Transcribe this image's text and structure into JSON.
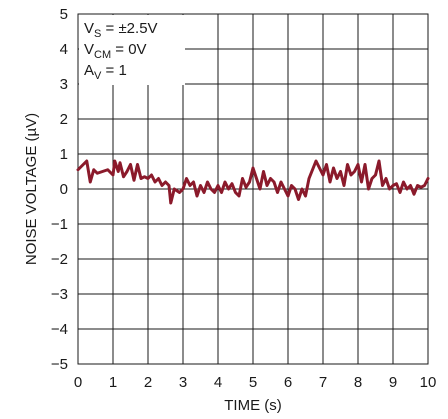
{
  "chart_data": {
    "type": "line",
    "title": "",
    "xlabel": "TIME (s)",
    "ylabel": "NOISE VOLTAGE (µV)",
    "xlim": [
      0,
      10
    ],
    "ylim": [
      -5,
      5
    ],
    "x_ticks": [
      0,
      1,
      2,
      3,
      4,
      5,
      6,
      7,
      8,
      9,
      10
    ],
    "y_ticks": [
      -5,
      -4,
      -3,
      -2,
      -1,
      0,
      1,
      2,
      3,
      4,
      5
    ],
    "x_tick_labels": [
      "0",
      "1",
      "2",
      "3",
      "4",
      "5",
      "6",
      "7",
      "8",
      "9",
      "10"
    ],
    "y_tick_labels": [
      "−5",
      "−4",
      "−3",
      "−2",
      "−1",
      "0",
      "1",
      "2",
      "3",
      "4",
      "5"
    ],
    "grid": true,
    "line_color": "#8b1a2b",
    "conditions": [
      {
        "main": "V",
        "sub": "S",
        "rest": " = ±2.5V"
      },
      {
        "main": "V",
        "sub": "CM",
        "rest": " = 0V"
      },
      {
        "main": "A",
        "sub": "V",
        "rest": " = 1"
      }
    ],
    "series": [
      {
        "x": [
          0,
          0.25,
          0.35,
          0.45,
          0.55,
          0.7,
          0.85,
          1.0,
          1.05,
          1.15,
          1.2,
          1.3,
          1.4,
          1.5,
          1.6,
          1.7,
          1.8,
          1.9,
          2.0,
          2.1,
          2.2,
          2.3,
          2.4,
          2.5,
          2.6,
          2.65,
          2.75,
          2.9,
          3.0,
          3.1,
          3.2,
          3.3,
          3.4,
          3.5,
          3.6,
          3.7,
          3.8,
          3.9,
          4.0,
          4.1,
          4.2,
          4.3,
          4.4,
          4.5,
          4.6,
          4.7,
          4.8,
          4.9,
          5.0,
          5.1,
          5.2,
          5.3,
          5.4,
          5.5,
          5.6,
          5.7,
          5.8,
          5.9,
          6.0,
          6.1,
          6.2,
          6.3,
          6.4,
          6.5,
          6.6,
          6.8,
          6.9,
          7.0,
          7.1,
          7.2,
          7.3,
          7.4,
          7.5,
          7.6,
          7.7,
          7.8,
          7.9,
          8.0,
          8.1,
          8.2,
          8.3,
          8.4,
          8.5,
          8.6,
          8.7,
          8.8,
          8.9,
          9.0,
          9.1,
          9.2,
          9.3,
          9.4,
          9.5,
          9.6,
          9.7,
          9.8,
          9.9,
          10.0
        ],
        "y": [
          0.55,
          0.8,
          0.2,
          0.55,
          0.45,
          0.5,
          0.55,
          0.4,
          0.8,
          0.5,
          0.75,
          0.35,
          0.5,
          0.7,
          0.25,
          0.7,
          0.3,
          0.35,
          0.3,
          0.4,
          0.2,
          0.3,
          0.1,
          0.2,
          0.1,
          -0.4,
          0.0,
          -0.1,
          0.0,
          0.3,
          0.1,
          0.2,
          -0.2,
          0.1,
          -0.1,
          0.2,
          0.0,
          -0.1,
          0.1,
          -0.1,
          0.2,
          0.0,
          0.15,
          -0.1,
          -0.2,
          0.3,
          0.05,
          0.2,
          0.6,
          0.3,
          0.0,
          0.5,
          0.1,
          0.3,
          0.2,
          -0.1,
          0.2,
          0.0,
          -0.2,
          0.1,
          0.0,
          -0.3,
          0.0,
          -0.2,
          0.3,
          0.8,
          0.6,
          0.4,
          0.7,
          0.2,
          0.6,
          0.3,
          0.5,
          0.1,
          0.7,
          0.4,
          0.5,
          0.7,
          0.2,
          0.7,
          0.0,
          0.3,
          0.4,
          0.8,
          0.1,
          0.3,
          0.0,
          0.1,
          0.15,
          -0.1,
          0.2,
          0.0,
          0.1,
          -0.15,
          0.1,
          0.05,
          0.1,
          0.3
        ]
      }
    ]
  }
}
